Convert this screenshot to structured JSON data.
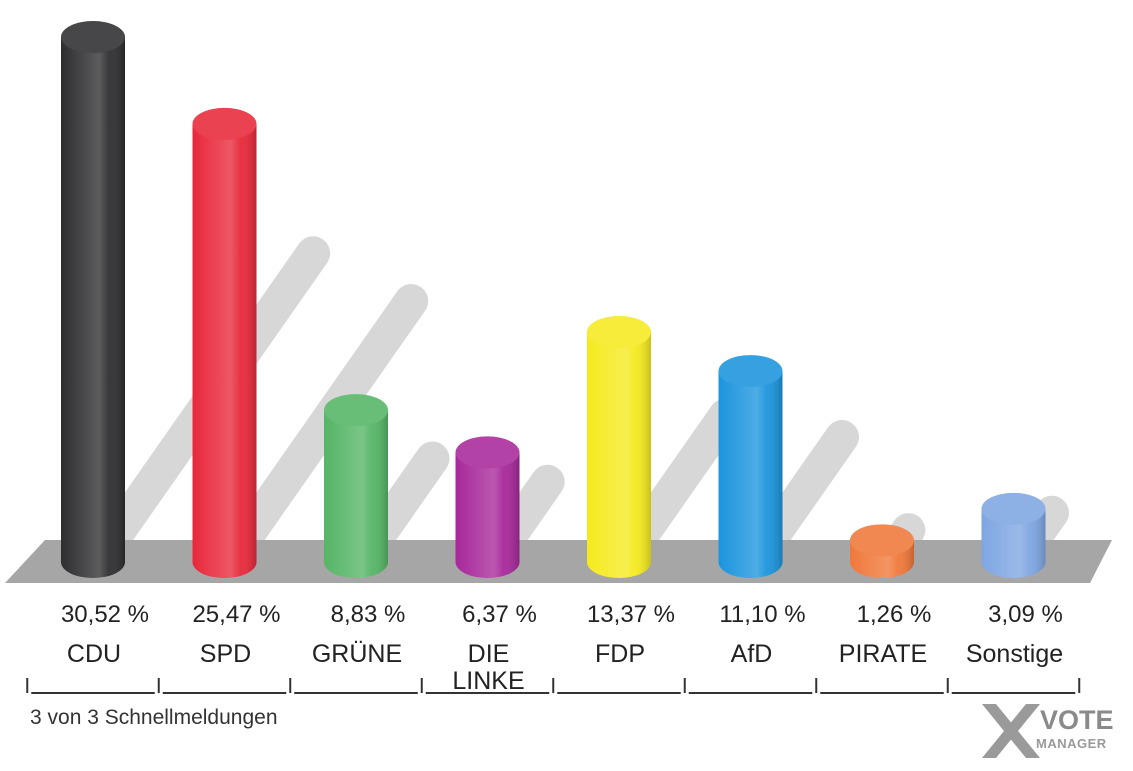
{
  "chart_data": {
    "type": "bar",
    "categories": [
      "CDU",
      "SPD",
      "GRÜNE",
      "DIE LINKE",
      "FDP",
      "AfD",
      "PIRATE",
      "Sonstige"
    ],
    "category_lines": [
      [
        "CDU"
      ],
      [
        "SPD"
      ],
      [
        "GRÜNE"
      ],
      [
        "DIE",
        "LINKE"
      ],
      [
        "FDP"
      ],
      [
        "AfD"
      ],
      [
        "PIRATE"
      ],
      [
        "Sonstige"
      ]
    ],
    "values": [
      30.52,
      25.47,
      8.83,
      6.37,
      13.37,
      11.1,
      1.26,
      3.09
    ],
    "value_labels": [
      "30,52 %",
      "25,47 %",
      "8,83 %",
      "6,37 %",
      "13,37 %",
      "11,10 %",
      "1,26 %",
      "3,09 %"
    ],
    "colors": [
      "#2e2e30",
      "#e8283a",
      "#55b565",
      "#a8289a",
      "#f5ea1e",
      "#1b95dd",
      "#f0783a",
      "#7ea6e2"
    ],
    "shadow_color": "#a8a8a8"
  },
  "footer": {
    "note": "3 von 3 Schnellmeldungen"
  },
  "logo": {
    "word": "VOTE",
    "sub": "MANAGER"
  }
}
